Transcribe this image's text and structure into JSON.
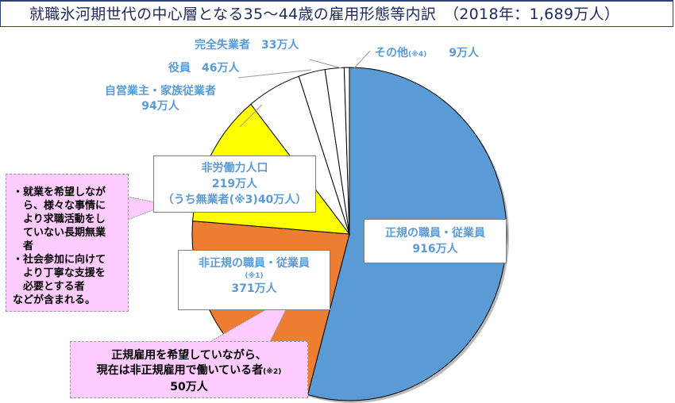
{
  "chart_data": {
    "type": "pie",
    "title": "就職氷河期世代の中心層となる35～44歳の雇用形態等内訳　（2018年：1,689万人）",
    "slices": [
      {
        "name": "正規の職員・従業員",
        "value": 916,
        "value_label": "916万人",
        "color": "#5b9bd5"
      },
      {
        "name": "非正規の職員・従業員",
        "note": "(※1)",
        "value": 371,
        "value_label": "371万人",
        "color": "#ed7d31"
      },
      {
        "name": "非労働力人口",
        "value": 219,
        "value_label": "219万人",
        "sub": "（うち無業者(※3)40万人）",
        "color": "#ffff00"
      },
      {
        "name": "自営業主・家族従業者",
        "value": 94,
        "value_label": "94万人",
        "color": "#ffffff"
      },
      {
        "name": "役員",
        "value": 46,
        "value_label": "46万人",
        "color": "#ffffff"
      },
      {
        "name": "完全失業者",
        "value": 33,
        "value_label": "33万人",
        "color": "#ffffff"
      },
      {
        "name": "その他",
        "note": "(※4)",
        "value": 9,
        "value_label": "9万人",
        "color": "#ffffff"
      }
    ]
  },
  "callouts": {
    "left": [
      "・就業を希望しなが",
      "　ら、様々な事情に",
      "　より求職活動をし",
      "　ていない長期無業",
      "　者",
      "・社会参加に向けて",
      "　より丁寧な支援を",
      "　必要とする者",
      "などが含まれる。"
    ],
    "bottom": [
      "正規雇用を希望していながら、",
      "現在は非正規雇用で働いている者",
      "(※2)",
      "50万人"
    ]
  }
}
